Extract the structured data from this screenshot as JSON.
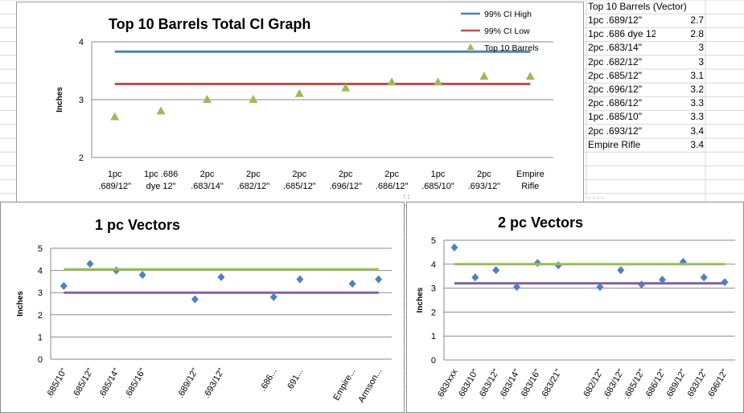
{
  "sheet": {
    "table": {
      "title": "Top 10 Barrels (Vector)",
      "rows": [
        {
          "label": "1pc .689/12\"",
          "value": "2.7"
        },
        {
          "label": "1pc .686 dye 12\"",
          "value": "2.8"
        },
        {
          "label": "2pc .683/14\"",
          "value": "3"
        },
        {
          "label": "2pc .682/12\"",
          "value": "3"
        },
        {
          "label": "2pc .685/12\"",
          "value": "3.1"
        },
        {
          "label": "2pc .696/12\"",
          "value": "3.2"
        },
        {
          "label": "2pc .686/12\"",
          "value": "3.3"
        },
        {
          "label": "1pc .685/10\"",
          "value": "3.3"
        },
        {
          "label": "2pc .693/12\"",
          "value": "3.4"
        },
        {
          "label": "Empire Rifle",
          "value": "3.4"
        }
      ]
    }
  },
  "colors": {
    "ci_high": "#4f81bd",
    "ci_low": "#c0504d",
    "top10_marker": "#9bbb59",
    "vector_marker": "#4f81bd",
    "vector_line_high": "#9bbb59",
    "vector_line_low": "#8064a2"
  },
  "chart_data": [
    {
      "id": "top10",
      "type": "scatter",
      "title": "Top 10 Barrels Total CI Graph",
      "ylabel": "Inches",
      "xlabel": "",
      "ylim": [
        2,
        4
      ],
      "yticks": [
        "2",
        "3",
        "4"
      ],
      "grid": true,
      "legend_position": "top-right",
      "categories": [
        [
          "1pc",
          ".689/12\""
        ],
        [
          "1pc .686",
          "dye 12\""
        ],
        [
          "2pc",
          ".683/14\""
        ],
        [
          "2pc",
          ".682/12\""
        ],
        [
          "2pc",
          ".685/12\""
        ],
        [
          "2pc",
          ".696/12\""
        ],
        [
          "2pc",
          ".686/12\""
        ],
        [
          "1pc",
          ".685/10\""
        ],
        [
          "2pc",
          ".693/12\""
        ],
        [
          "Empire",
          "Rifle"
        ]
      ],
      "series": [
        {
          "name": "99% CI High",
          "kind": "line",
          "values": [
            3.83,
            3.83,
            3.83,
            3.83,
            3.83,
            3.83,
            3.83,
            3.83,
            3.83,
            3.83
          ]
        },
        {
          "name": "99% CI Low",
          "kind": "line",
          "values": [
            3.27,
            3.27,
            3.27,
            3.27,
            3.27,
            3.27,
            3.27,
            3.27,
            3.27,
            3.27
          ]
        },
        {
          "name": "Top 10 Barrels",
          "kind": "triangle",
          "values": [
            2.7,
            2.8,
            3.0,
            3.0,
            3.1,
            3.2,
            3.3,
            3.3,
            3.4,
            3.4
          ]
        }
      ]
    },
    {
      "id": "onepc",
      "type": "scatter",
      "title": "1 pc Vectors",
      "ylabel": "Inches",
      "xlabel": "",
      "ylim": [
        0,
        5
      ],
      "yticks": [
        "0",
        "1",
        "2",
        "3",
        "4",
        "5"
      ],
      "grid": true,
      "categories": [
        ".685/10\"",
        ".685/12\"",
        ".685/14\"",
        ".685/16\"",
        "",
        ".689/12\"",
        ".693/12\"",
        "",
        ".686...",
        ".691...",
        "",
        "Empire...",
        "Armson..."
      ],
      "series": [
        {
          "name": "",
          "kind": "diamond",
          "values": [
            3.3,
            4.3,
            4.0,
            3.8,
            null,
            2.7,
            3.7,
            null,
            2.8,
            3.6,
            null,
            3.4,
            3.6
          ]
        },
        {
          "name": "",
          "kind": "line-high",
          "values": [
            4.05,
            4.05,
            4.05,
            4.05,
            4.05,
            4.05,
            4.05,
            4.05,
            4.05,
            4.05,
            4.05,
            4.05,
            4.05
          ]
        },
        {
          "name": "",
          "kind": "line-low",
          "values": [
            3.0,
            3.0,
            3.0,
            3.0,
            3.0,
            3.0,
            3.0,
            3.0,
            3.0,
            3.0,
            3.0,
            3.0,
            3.0
          ]
        }
      ]
    },
    {
      "id": "twopc",
      "type": "scatter",
      "title": "2 pc Vectors",
      "ylabel": "Inches",
      "xlabel": "",
      "ylim": [
        0,
        5
      ],
      "yticks": [
        "0",
        "1",
        "2",
        "3",
        "4",
        "5"
      ],
      "grid": true,
      "categories": [
        ".683/xxx",
        ".683/10\"",
        ".683/12\"",
        ".683/14\"",
        ".683/16\"",
        ".683/21\"",
        "",
        ".682/12\"",
        ".683/12\"",
        ".685/12\"",
        ".686/12\"",
        ".689/12\"",
        ".693/12\"",
        ".696/12\""
      ],
      "series": [
        {
          "name": "",
          "kind": "diamond",
          "values": [
            4.7,
            3.45,
            3.75,
            3.05,
            4.05,
            3.95,
            null,
            3.05,
            3.75,
            3.15,
            3.35,
            4.1,
            3.45,
            3.25
          ]
        },
        {
          "name": "",
          "kind": "line-high",
          "values": [
            4.0,
            4.0,
            4.0,
            4.0,
            4.0,
            4.0,
            4.0,
            4.0,
            4.0,
            4.0,
            4.0,
            4.0,
            4.0,
            4.0
          ]
        },
        {
          "name": "",
          "kind": "line-low",
          "values": [
            3.2,
            3.2,
            3.2,
            3.2,
            3.2,
            3.2,
            3.2,
            3.2,
            3.2,
            3.2,
            3.2,
            3.2,
            3.2,
            3.2
          ]
        }
      ]
    }
  ]
}
